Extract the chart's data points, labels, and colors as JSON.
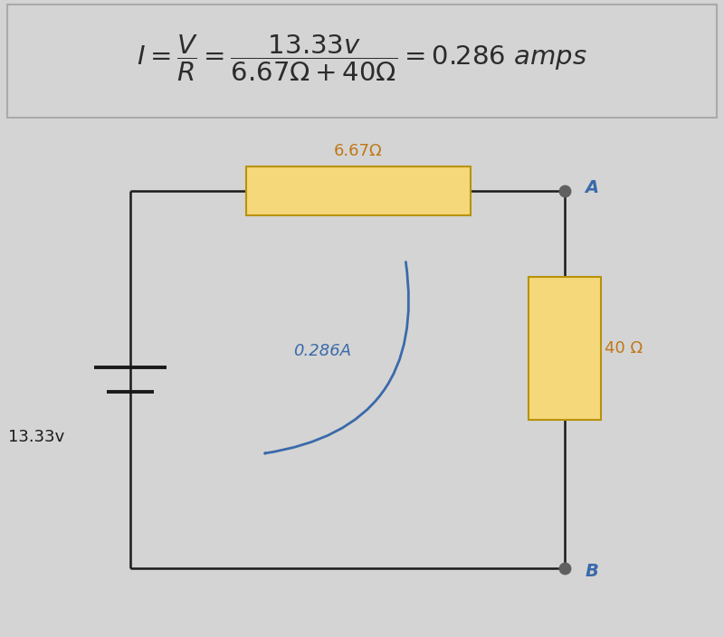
{
  "fig_width": 8.0,
  "fig_height": 7.04,
  "dpi": 100,
  "top_bg": "#d4d4d4",
  "circuit_bg": "#d0d0d0",
  "formula_color": "#2c2c2c",
  "resistor_color": "#f5d87a",
  "resistor_border": "#b8920a",
  "wire_color": "#1a1a1a",
  "node_color": "#606060",
  "label_r1": "6.67Ω",
  "label_r2": "40 Ω",
  "label_v": "13.33v",
  "label_i": "0.286A",
  "label_a": "A",
  "label_b": "B",
  "arrow_color": "#3a6aaa",
  "text_color_orange": "#c07818",
  "text_color_blue": "#3a6aaa",
  "text_color_dark": "#1a1a1a"
}
